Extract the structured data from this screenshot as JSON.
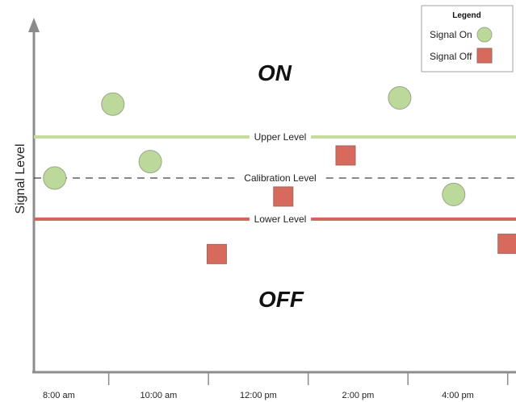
{
  "chart_data": {
    "type": "scatter",
    "title": "",
    "xlabel": "",
    "ylabel": "Signal Level",
    "region_labels": {
      "top": "ON",
      "bottom": "OFF"
    },
    "x_ticks": [
      "8:00 am",
      "10:00 am",
      "12:00 pm",
      "2:00 pm",
      "4:00 pm"
    ],
    "xlim": [
      "7:30 am",
      "5:10 pm"
    ],
    "levels": [
      {
        "name": "Upper Level",
        "value": 1.0,
        "style": "solid",
        "color": "#c5dc9c"
      },
      {
        "name": "Calibration Level",
        "value": 0.0,
        "style": "dashed",
        "color": "#404040"
      },
      {
        "name": "Lower Level",
        "value": -1.0,
        "style": "solid",
        "color": "#d4665c"
      }
    ],
    "series": [
      {
        "name": "Signal On",
        "marker": "circle",
        "color": "#bcd89a",
        "points": [
          {
            "x": "7:55 am",
            "y": 0.0
          },
          {
            "x": "9:05 am",
            "y": 1.8
          },
          {
            "x": "9:50 am",
            "y": 0.4
          },
          {
            "x": "2:50 pm",
            "y": 1.95
          },
          {
            "x": "3:55 pm",
            "y": -0.4
          }
        ]
      },
      {
        "name": "Signal Off",
        "marker": "square",
        "color": "#d76a5d",
        "points": [
          {
            "x": "11:10 am",
            "y": -1.85
          },
          {
            "x": "12:30 pm",
            "y": -0.45
          },
          {
            "x": "1:45 pm",
            "y": 0.55
          },
          {
            "x": "5:00 pm",
            "y": -1.6
          }
        ]
      }
    ],
    "legend": {
      "title": "Legend",
      "placement": "top-right"
    },
    "grid": false
  }
}
